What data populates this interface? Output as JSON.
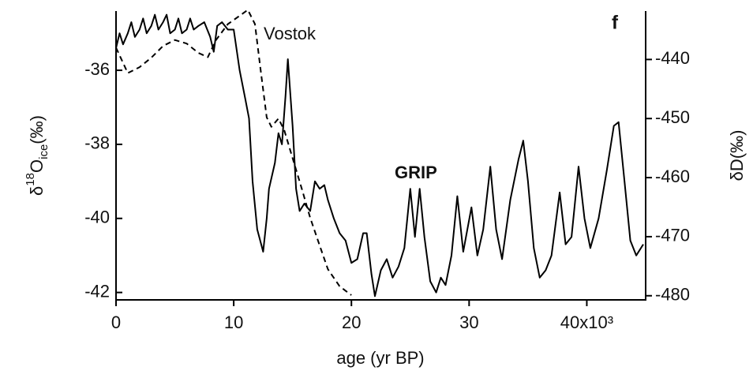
{
  "chart_data": {
    "type": "line",
    "panel_label": "f",
    "xlabel": "age (yr BP)",
    "ylabel_parts": [
      "δ",
      "18",
      "O",
      "ice",
      "(‰)"
    ],
    "y2label": "δD(‰)",
    "xlim": [
      0,
      45000
    ],
    "xticks": [
      0,
      {
        "value": 10000,
        "label": "10"
      },
      {
        "value": 20000,
        "label": "20"
      },
      {
        "value": 30000,
        "label": "30"
      },
      {
        "value": 40000,
        "label": "40x10³"
      }
    ],
    "ylim": [
      -42.2,
      -34.4
    ],
    "yticks": [
      -36,
      -38,
      -40,
      -42
    ],
    "y2lim": [
      -480.7,
      -431.8
    ],
    "y2ticks": [
      -440,
      -450,
      -460,
      -470,
      -480
    ],
    "series": [
      {
        "name": "GRIP",
        "color": "#000000",
        "dash": false,
        "axis": "y",
        "x": [
          0,
          300,
          600,
          1000,
          1300,
          1600,
          2000,
          2300,
          2600,
          3000,
          3300,
          3600,
          4000,
          4300,
          4600,
          5000,
          5300,
          5600,
          6000,
          6300,
          6600,
          7000,
          7500,
          8000,
          8300,
          8600,
          9000,
          9500,
          10000,
          10500,
          11000,
          11300,
          11600,
          12000,
          12500,
          12800,
          13000,
          13500,
          13800,
          14100,
          14400,
          14600,
          15000,
          15300,
          15600,
          16000,
          16500,
          16900,
          17300,
          17700,
          18000,
          18500,
          19000,
          19500,
          20000,
          20500,
          21000,
          21300,
          21700,
          22000,
          22500,
          23000,
          23500,
          24000,
          24500,
          25000,
          25400,
          25800,
          26200,
          26700,
          27200,
          27600,
          28000,
          28500,
          29000,
          29500,
          30200,
          30700,
          31200,
          31800,
          32300,
          32800,
          33500,
          34200,
          34600,
          35000,
          35500,
          36000,
          36500,
          37000,
          37700,
          38200,
          38700,
          39300,
          39800,
          40300,
          41000,
          41700,
          42300,
          42700,
          43200,
          43700,
          44200,
          44800
        ],
        "values": [
          -35.4,
          -35.0,
          -35.3,
          -35.0,
          -34.7,
          -35.1,
          -34.9,
          -34.6,
          -35.0,
          -34.8,
          -34.5,
          -34.9,
          -34.7,
          -34.5,
          -35.0,
          -34.9,
          -34.6,
          -35.0,
          -34.9,
          -34.6,
          -34.9,
          -34.8,
          -34.7,
          -35.1,
          -35.5,
          -34.8,
          -34.7,
          -34.9,
          -34.9,
          -36.0,
          -36.8,
          -37.3,
          -39.0,
          -40.3,
          -40.9,
          -40.0,
          -39.2,
          -38.5,
          -37.7,
          -38.0,
          -36.7,
          -35.7,
          -37.5,
          -39.2,
          -39.8,
          -39.6,
          -39.8,
          -39.0,
          -39.2,
          -39.1,
          -39.5,
          -40.0,
          -40.4,
          -40.6,
          -41.2,
          -41.1,
          -40.4,
          -40.4,
          -41.5,
          -42.1,
          -41.4,
          -41.1,
          -41.6,
          -41.3,
          -40.8,
          -39.2,
          -40.5,
          -39.2,
          -40.5,
          -41.7,
          -42.0,
          -41.6,
          -41.8,
          -41.0,
          -39.4,
          -40.9,
          -39.7,
          -41.0,
          -40.3,
          -38.6,
          -40.3,
          -41.1,
          -39.5,
          -38.4,
          -37.9,
          -39.0,
          -40.8,
          -41.6,
          -41.4,
          -41.0,
          -39.3,
          -40.7,
          -40.5,
          -38.6,
          -40.0,
          -40.8,
          -40.0,
          -38.7,
          -37.5,
          -37.4,
          -39.0,
          -40.6,
          -41.0,
          -40.7
        ]
      },
      {
        "name": "Vostok",
        "color": "#000000",
        "dash": true,
        "axis": "y2",
        "x": [
          0,
          1000,
          2000,
          3000,
          4000,
          5000,
          6000,
          7000,
          7800,
          8500,
          9500,
          10500,
          11200,
          11800,
          12300,
          12800,
          13200,
          13800,
          14300,
          15000,
          15800,
          16500,
          17300,
          18000,
          19000,
          20000
        ],
        "values": [
          -438,
          -442.3,
          -441.3,
          -439.7,
          -437.7,
          -436.7,
          -437.3,
          -438.9,
          -439.6,
          -436.7,
          -434,
          -432.6,
          -431.6,
          -434,
          -442,
          -449.8,
          -451.4,
          -450,
          -452,
          -456.7,
          -462,
          -466.8,
          -471.5,
          -475.5,
          -478.4,
          -479.9
        ]
      }
    ]
  }
}
